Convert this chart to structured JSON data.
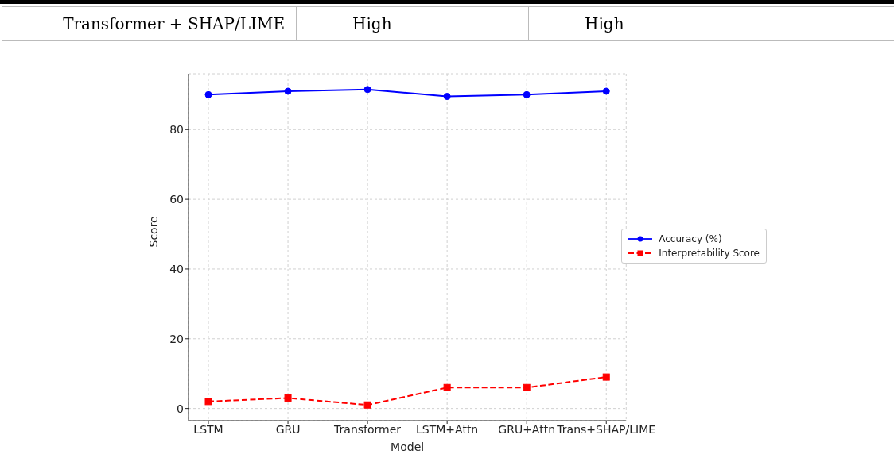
{
  "chart_data": {
    "type": "line",
    "xlabel": "Model",
    "ylabel": "Score",
    "categories": [
      "LSTM",
      "GRU",
      "Transformer",
      "LSTM+Attn",
      "GRU+Attn",
      "Trans+SHAP/LIME"
    ],
    "series": [
      {
        "name": "Accuracy (%)",
        "color": "#0000ff",
        "values": [
          90,
          91,
          91.5,
          89.5,
          90,
          91
        ],
        "marker": "circle",
        "line_style": "solid"
      },
      {
        "name": "Interpretability Score",
        "color": "#ff0000",
        "values": [
          2,
          3,
          1,
          6,
          6,
          9
        ],
        "marker": "square",
        "line_style": "dashed"
      }
    ],
    "ylim": [
      -3.5,
      96
    ],
    "yticks": [
      0,
      20,
      40,
      60,
      80
    ],
    "grid": true,
    "legend": "center right",
    "annotations": [
      "Transformer + SHAP/LIME",
      "High",
      "High"
    ]
  }
}
